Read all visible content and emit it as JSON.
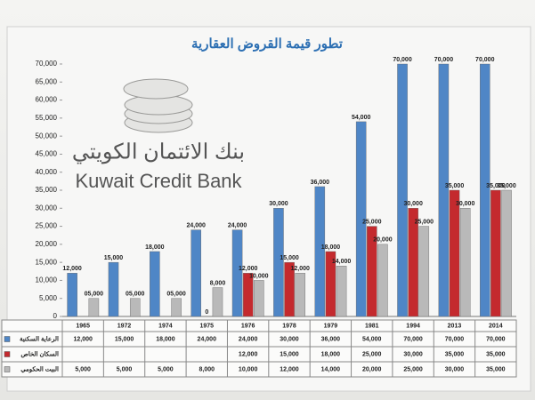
{
  "chart_data": {
    "type": "bar",
    "title": "تطور قيمة القروض العقارية",
    "logo": {
      "arabic": "بنك الائتمان الكويتي",
      "english": "Kuwait Credit Bank"
    },
    "categories": [
      "1965",
      "1972",
      "1974",
      "1975",
      "1976",
      "1978",
      "1979",
      "1981",
      "1994",
      "2013",
      "2014"
    ],
    "series": [
      {
        "name": "الرعاية السكنية",
        "color": "#4f86c6",
        "values": [
          12000,
          15000,
          18000,
          24000,
          24000,
          30000,
          36000,
          54000,
          70000,
          70000,
          70000
        ],
        "value_labels": [
          "12,000",
          "15,000",
          "18,000",
          "24,000",
          "24,000",
          "30,000",
          "36,000",
          "54,000",
          "70,000",
          "70,000",
          "70,000"
        ],
        "table_labels": [
          "12,000",
          "15,000",
          "18,000",
          "24,000",
          "24,000",
          "30,000",
          "36,000",
          "54,000",
          "70,000",
          "70,000",
          "70,000"
        ]
      },
      {
        "name": "السكان الخاص",
        "color": "#c42a2e",
        "values": [
          null,
          null,
          null,
          0,
          12000,
          15000,
          18000,
          25000,
          30000,
          35000,
          35000
        ],
        "value_labels": [
          null,
          null,
          null,
          "0",
          "12,000",
          "15,000",
          "18,000",
          "25,000",
          "30,000",
          "35,000",
          "35,000"
        ],
        "table_labels": [
          null,
          null,
          null,
          null,
          "12,000",
          "15,000",
          "18,000",
          "25,000",
          "30,000",
          "35,000",
          "35,000"
        ]
      },
      {
        "name": "البيت الحكومي",
        "color": "#b9b9b9",
        "values": [
          5000,
          5000,
          5000,
          8000,
          10000,
          12000,
          14000,
          20000,
          25000,
          30000,
          35000
        ],
        "value_labels": [
          "05,000",
          "05,000",
          "05,000",
          "8,000",
          "10,000",
          "12,000",
          "14,000",
          "20,000",
          "25,000",
          "30,000",
          "35,000"
        ],
        "table_labels": [
          "5,000",
          "5,000",
          "5,000",
          "8,000",
          "10,000",
          "12,000",
          "14,000",
          "20,000",
          "25,000",
          "30,000",
          "35,000"
        ]
      }
    ],
    "ylim": [
      0,
      70000
    ],
    "yticks": [
      0,
      {
        "value": 5000,
        "label": "5,000"
      },
      {
        "value": 10000,
        "label": "10,000"
      },
      {
        "value": 15000,
        "label": "15,000"
      },
      {
        "value": 20000,
        "label": "20,000"
      },
      {
        "value": 25000,
        "label": "25,000"
      },
      {
        "value": 30000,
        "label": "30,000"
      },
      {
        "value": 35000,
        "label": "35,000"
      },
      {
        "value": 40000,
        "label": "40,000"
      },
      {
        "value": 45000,
        "label": "45,000"
      },
      {
        "value": 50000,
        "label": "50,000"
      },
      {
        "value": 55000,
        "label": "55,000"
      },
      {
        "value": 60000,
        "label": "60,000"
      },
      {
        "value": 65000,
        "label": "65,000"
      },
      {
        "value": 70000,
        "label": "70,000"
      }
    ],
    "grid": false
  }
}
